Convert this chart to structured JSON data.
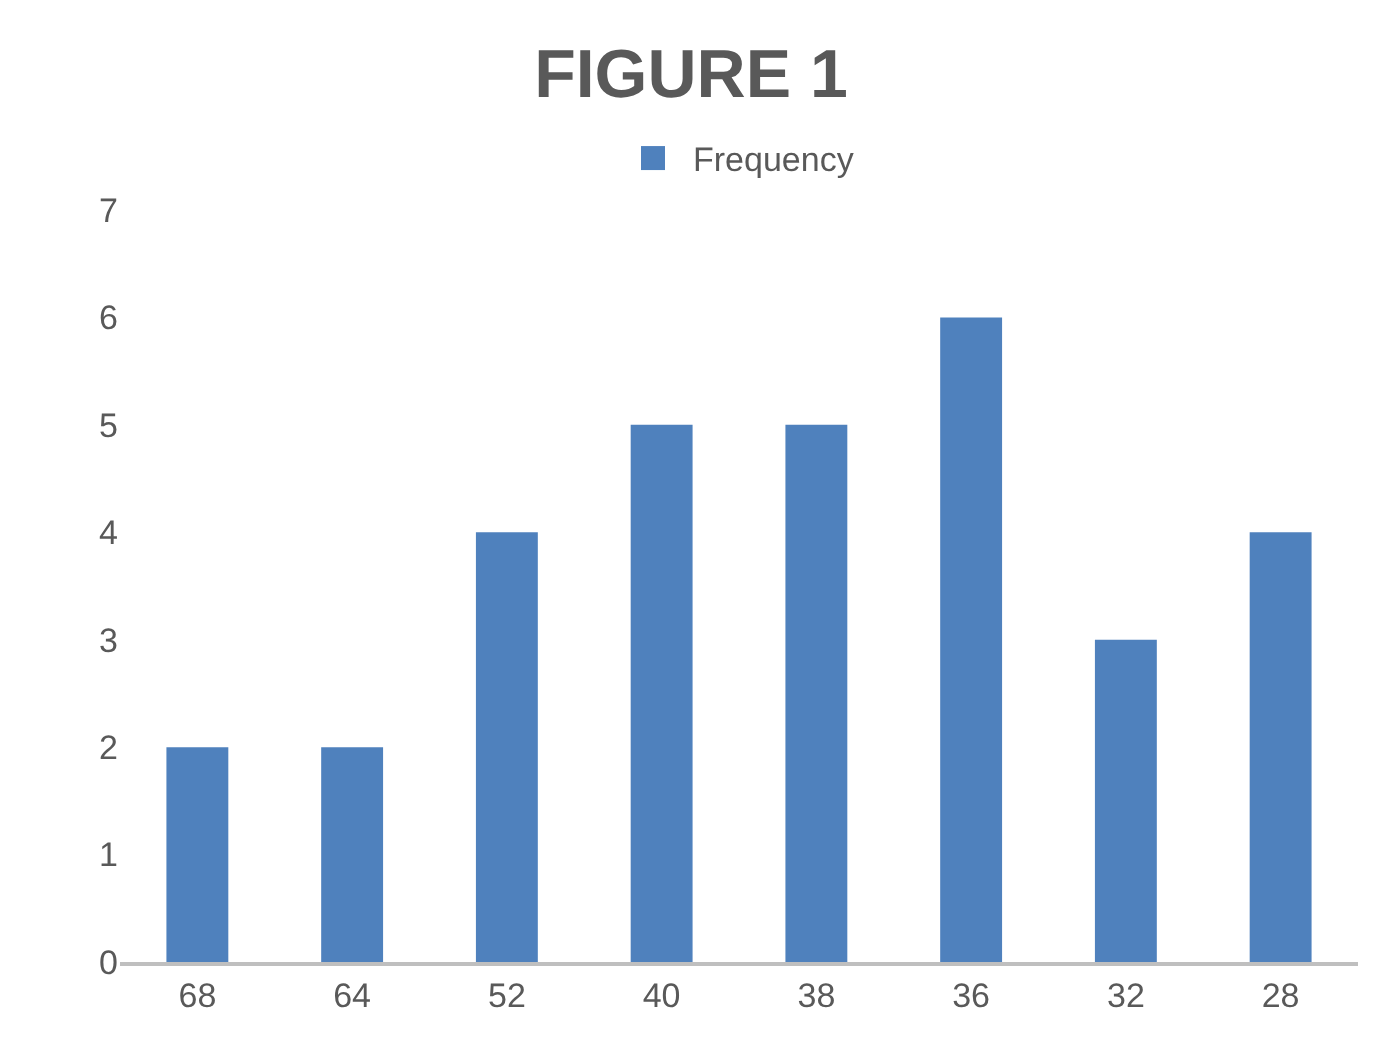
{
  "chart_data": {
    "type": "bar",
    "title": "FIGURE 1",
    "categories": [
      "68",
      "64",
      "52",
      "40",
      "38",
      "36",
      "32",
      "28"
    ],
    "series": [
      {
        "name": "Frequency",
        "color": "#4f81bd",
        "values": [
          2,
          2,
          4,
          5,
          5,
          6,
          3,
          4
        ]
      }
    ],
    "ylim": [
      0,
      7
    ],
    "yticks": [
      0,
      1,
      2,
      3,
      4,
      5,
      6,
      7
    ],
    "grid": false,
    "legend": "top"
  }
}
